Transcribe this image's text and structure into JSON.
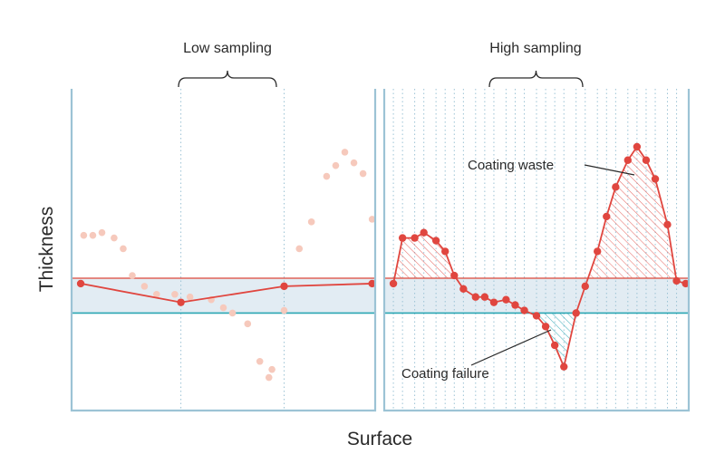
{
  "colors": {
    "frame": "#9cc3d5",
    "band_fill": "#e2ecf3",
    "upper_limit": "#e06458",
    "lower_limit": "#2aa6b3",
    "measured": "#e0463f",
    "faded_points": "#f6c9bc",
    "waste_hatch": "#e0463f",
    "failure_hatch": "#2aa6b3",
    "sample_lines": "#9cc3d5",
    "label_text": "#2a2a2a"
  },
  "chart_data": {
    "type": "line",
    "xlabel": "Surface",
    "ylabel": "Thickness",
    "x_range": [
      0,
      1
    ],
    "y_range": [
      0,
      1
    ],
    "tolerance_band": {
      "lower": 0.37,
      "upper": 0.5
    },
    "grid": false,
    "panels": [
      {
        "label": "Low sampling",
        "underlying_profile": {
          "x": [
            0.04,
            0.07,
            0.1,
            0.14,
            0.17,
            0.2,
            0.24,
            0.28,
            0.34,
            0.39,
            0.46,
            0.5,
            0.53,
            0.58,
            0.62,
            0.65,
            0.66,
            0.7,
            0.75,
            0.79,
            0.84,
            0.87,
            0.9,
            0.93,
            0.96,
            0.99
          ],
          "y": [
            0.66,
            0.66,
            0.67,
            0.65,
            0.61,
            0.51,
            0.47,
            0.44,
            0.44,
            0.43,
            0.42,
            0.39,
            0.37,
            0.33,
            0.19,
            0.13,
            0.16,
            0.38,
            0.61,
            0.71,
            0.88,
            0.92,
            0.97,
            0.93,
            0.89,
            0.72
          ]
        },
        "samples": {
          "x": [
            0.03,
            0.36,
            0.7,
            0.99
          ],
          "y": [
            0.48,
            0.41,
            0.47,
            0.48
          ]
        }
      },
      {
        "label": "High sampling",
        "samples": {
          "x": [
            0.03,
            0.06,
            0.1,
            0.13,
            0.17,
            0.2,
            0.23,
            0.26,
            0.3,
            0.33,
            0.36,
            0.4,
            0.43,
            0.46,
            0.5,
            0.53,
            0.56,
            0.59,
            0.63,
            0.66,
            0.7,
            0.73,
            0.76,
            0.8,
            0.83,
            0.86,
            0.89,
            0.93,
            0.96,
            0.99
          ],
          "y": [
            0.48,
            0.65,
            0.65,
            0.67,
            0.64,
            0.6,
            0.51,
            0.46,
            0.43,
            0.43,
            0.41,
            0.42,
            0.4,
            0.38,
            0.36,
            0.32,
            0.25,
            0.17,
            0.37,
            0.47,
            0.6,
            0.73,
            0.84,
            0.94,
            0.99,
            0.94,
            0.87,
            0.7,
            0.49,
            0.48
          ]
        },
        "annotations": [
          "Coating waste",
          "Coating failure"
        ]
      }
    ]
  }
}
